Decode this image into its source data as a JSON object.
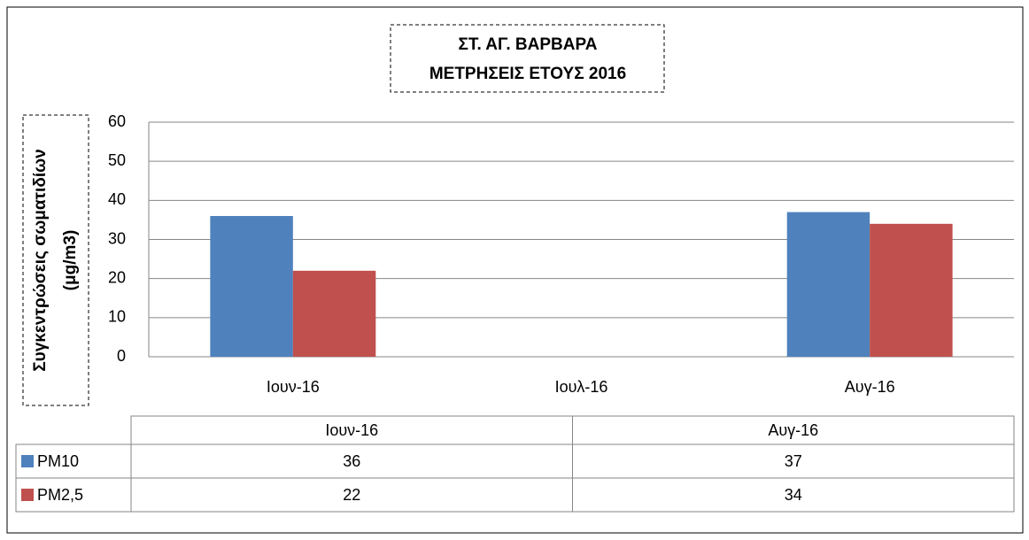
{
  "chart_data": {
    "type": "bar",
    "title": [
      "ΣΤ. ΑΓ. ΒΑΡΒΑΡΑ",
      "ΜΕΤΡΗΣΕΙΣ ΕΤΟΥΣ 2016"
    ],
    "y_label": [
      "Συγκεντρώσεις σωματιδίων",
      "(μg/m3)"
    ],
    "categories": [
      "Ιουν-16",
      "Ιουλ-16",
      "Αυγ-16"
    ],
    "series": [
      {
        "name": "PM10",
        "color": "#4f81bd",
        "values": [
          36,
          null,
          37
        ]
      },
      {
        "name": "PM2,5",
        "color": "#c0504d",
        "values": [
          22,
          null,
          34
        ]
      }
    ],
    "ylim": [
      0,
      60
    ],
    "yticks": [
      0,
      10,
      20,
      30,
      40,
      50,
      60
    ],
    "grid": true,
    "data_table": true
  }
}
